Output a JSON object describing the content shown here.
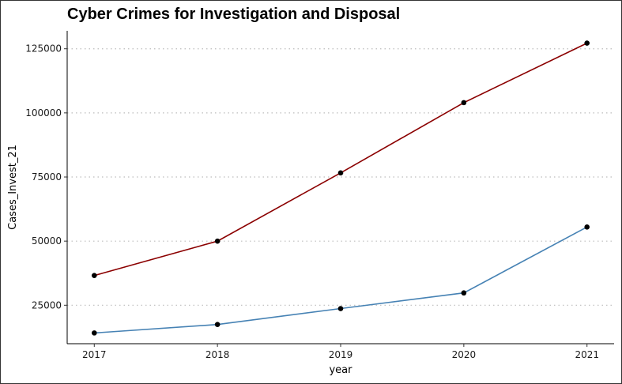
{
  "chart_data": {
    "type": "line",
    "title": "Cyber Crimes for Investigation and Disposal",
    "xlabel": "year",
    "ylabel": "Cases_Invest_21",
    "x": [
      2017,
      2018,
      2019,
      2020,
      2021
    ],
    "x_ticks": [
      "2017",
      "2018",
      "2019",
      "2020",
      "2021"
    ],
    "y_ticks": [
      "25000",
      "50000",
      "75000",
      "100000",
      "125000"
    ],
    "y_tick_values": [
      25000,
      50000,
      75000,
      100000,
      125000
    ],
    "ylim": [
      10000,
      132000
    ],
    "xlim": [
      2016.78,
      2021.22
    ],
    "grid": "horizontal dotted at major ticks",
    "legend": "none",
    "series": [
      {
        "color": "#8b0000",
        "values": [
          36600,
          50000,
          76600,
          104000,
          127200
        ]
      },
      {
        "color": "#4682b4",
        "values": [
          14200,
          17500,
          23700,
          29800,
          55500
        ]
      }
    ],
    "point_color": "#000000"
  }
}
